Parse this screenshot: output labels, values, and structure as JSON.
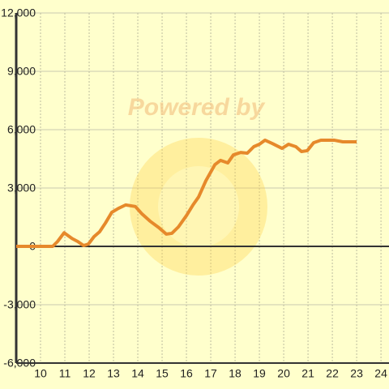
{
  "chart_data": {
    "type": "line",
    "watermark": "Powered by",
    "x": [
      9,
      10.5,
      10.7,
      10.97,
      11.3,
      11.53,
      11.77,
      11.97,
      12.2,
      12.43,
      12.67,
      12.93,
      13.2,
      13.5,
      13.9,
      14.17,
      14.5,
      14.87,
      15.17,
      15.4,
      15.67,
      16,
      16.27,
      16.5,
      16.8,
      17.17,
      17.4,
      17.7,
      17.93,
      18.23,
      18.5,
      18.77,
      19,
      19.23,
      19.53,
      19.93,
      20.2,
      20.5,
      20.73,
      20.97,
      21.23,
      21.53,
      22.07,
      22.43,
      23
    ],
    "series": [
      {
        "color": "#e6892b",
        "values": [
          0,
          0,
          250,
          700,
          400,
          250,
          40,
          120,
          500,
          750,
          1200,
          1750,
          1950,
          2130,
          2050,
          1670,
          1300,
          960,
          630,
          670,
          1000,
          1580,
          2130,
          2540,
          3375,
          4200,
          4420,
          4290,
          4700,
          4830,
          4790,
          5125,
          5250,
          5460,
          5290,
          5040,
          5250,
          5125,
          4875,
          4920,
          5330,
          5460,
          5460,
          5375,
          5375
        ]
      }
    ],
    "xlim": [
      9,
      24.33
    ],
    "xticks": [
      10,
      11,
      12,
      13,
      14,
      15,
      16,
      17,
      18,
      19,
      20,
      21,
      22,
      23,
      24
    ],
    "ylim": [
      -6000,
      12000
    ],
    "yticks": [
      {
        "value": -6000,
        "label": "-6,000"
      },
      {
        "value": -3000,
        "label": "-3,000"
      },
      0,
      {
        "value": 3000,
        "label": "3,000"
      },
      {
        "value": 6000,
        "label": "6,000"
      },
      {
        "value": 9000,
        "label": "9,000"
      },
      {
        "value": 12000,
        "label": "12,000"
      }
    ],
    "grid": true
  }
}
